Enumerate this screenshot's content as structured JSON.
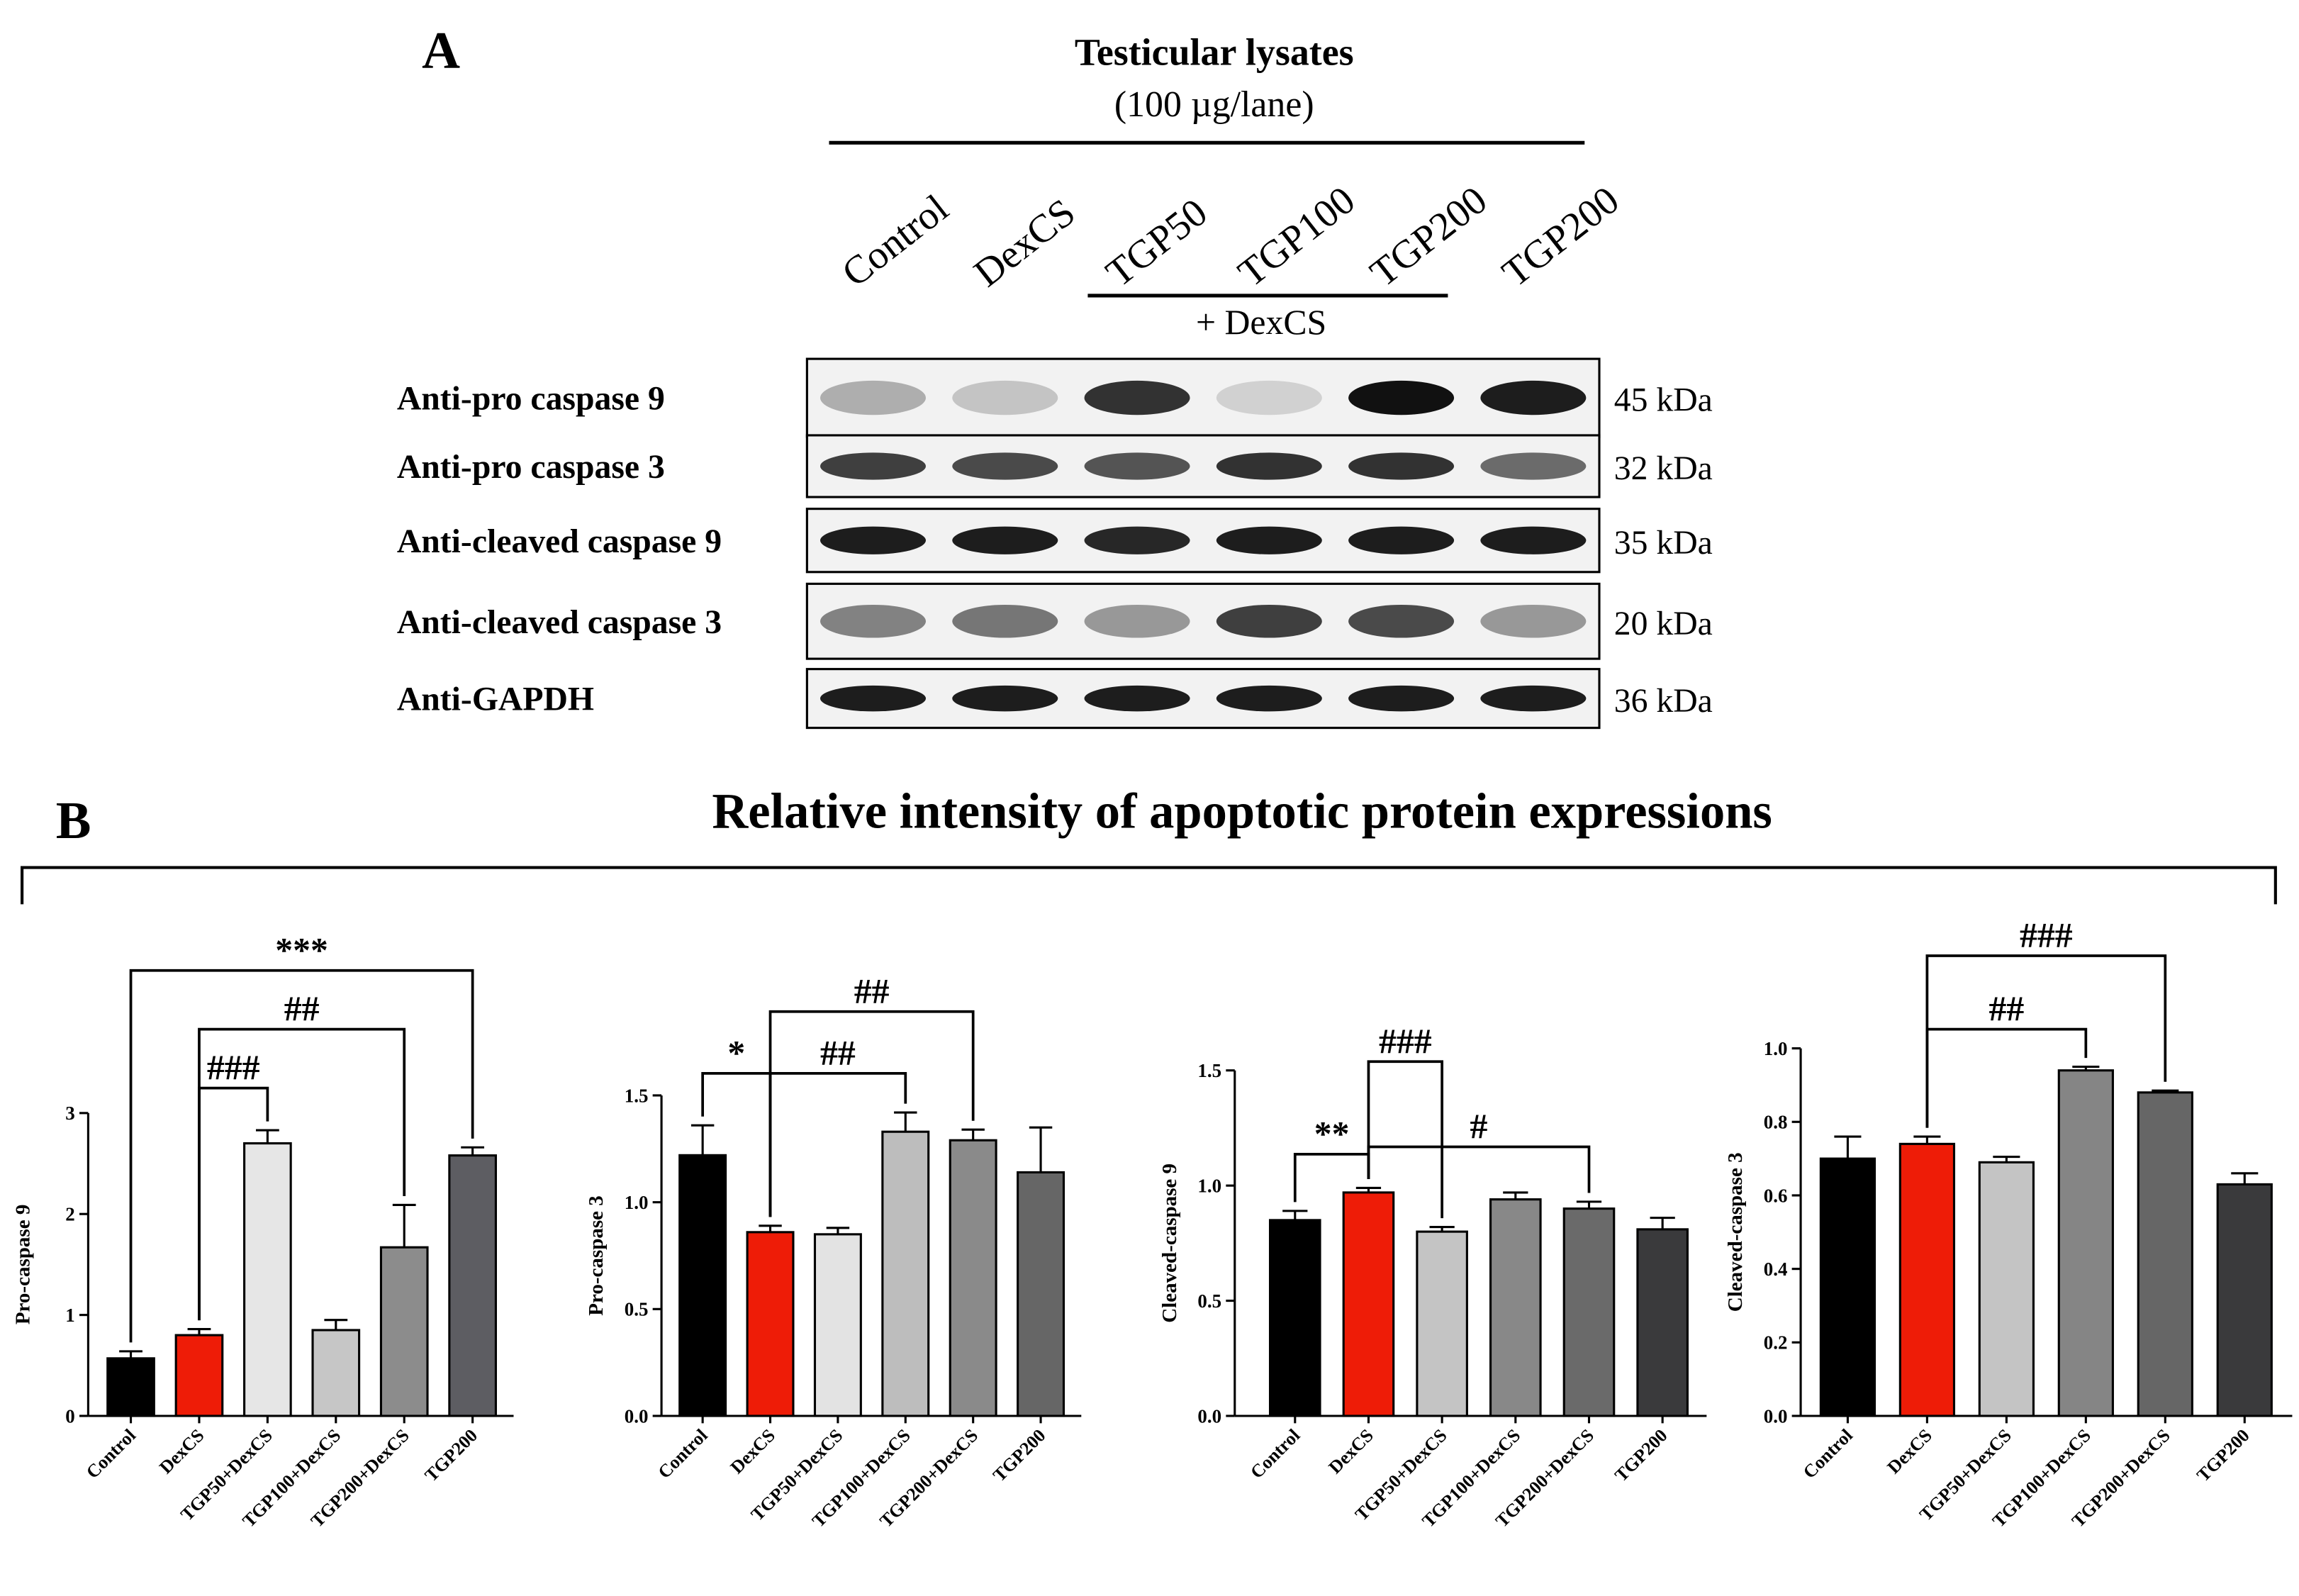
{
  "panel_a": {
    "label": "A",
    "title": "Testicular lysates",
    "subtitle": "(100 µg/lane)",
    "lanes": [
      "Control",
      "DexCS",
      "TGP50",
      "TGP100",
      "TGP200",
      "TGP200"
    ],
    "group_label": "+ DexCS",
    "blots": [
      {
        "antibody": "Anti-pro caspase 9",
        "size": "45 kDa"
      },
      {
        "antibody": "Anti-pro caspase 3",
        "size": "32 kDa"
      },
      {
        "antibody": "Anti-cleaved caspase 9",
        "size": "35 kDa"
      },
      {
        "antibody": "Anti-cleaved caspase 3",
        "size": "20 kDa"
      },
      {
        "antibody": "Anti-GAPDH",
        "size": "36 kDa"
      }
    ]
  },
  "panel_b": {
    "label": "B",
    "title": "Relative intensity of apoptotic protein expressions"
  },
  "chart_data": [
    {
      "type": "bar",
      "ylabel": "Pro-caspase 9",
      "categories": [
        "Control",
        "DexCS",
        "TGP50+DexCS",
        "TGP100+DexCS",
        "TGP200+DexCS",
        "TGP200"
      ],
      "values": [
        0.57,
        0.8,
        2.7,
        0.85,
        1.67,
        2.58
      ],
      "errors": [
        0.07,
        0.06,
        0.13,
        0.1,
        0.42,
        0.08
      ],
      "colors": [
        "#000000",
        "#ee1c07",
        "#e6e6e6",
        "#c6c6c6",
        "#8c8c8c",
        "#5d5d62"
      ],
      "ylim": [
        0,
        3
      ],
      "yticks": [
        0,
        1,
        2,
        3
      ],
      "annotations": [
        {
          "text": "***",
          "from": "Control",
          "to": "TGP200"
        },
        {
          "text": "##",
          "from": "DexCS",
          "to": "TGP200+DexCS"
        },
        {
          "text": "###",
          "from": "DexCS",
          "to": "TGP50+DexCS"
        }
      ]
    },
    {
      "type": "bar",
      "ylabel": "Pro-caspase 3",
      "categories": [
        "Control",
        "DexCS",
        "TGP50+DexCS",
        "TGP100+DexCS",
        "TGP200+DexCS",
        "TGP200"
      ],
      "values": [
        1.22,
        0.86,
        0.85,
        1.33,
        1.29,
        1.14
      ],
      "errors": [
        0.14,
        0.03,
        0.03,
        0.09,
        0.05,
        0.21
      ],
      "colors": [
        "#000000",
        "#ee1c07",
        "#e3e3e3",
        "#bdbdbd",
        "#8a8a8a",
        "#666666"
      ],
      "ylim": [
        0,
        1.5
      ],
      "yticks": [
        {
          "value": 0,
          "label": "0.0"
        },
        0.5,
        {
          "value": 1,
          "label": "1.0"
        },
        1.5
      ],
      "annotations": [
        {
          "text": "*",
          "from": "Control",
          "to": "DexCS"
        },
        {
          "text": "##",
          "from": "DexCS",
          "to": "TGP100+DexCS"
        },
        {
          "text": "##",
          "from": "DexCS",
          "to": "TGP200+DexCS"
        }
      ]
    },
    {
      "type": "bar",
      "ylabel": "Cleaved-caspase 9",
      "categories": [
        "Control",
        "DexCS",
        "TGP50+DexCS",
        "TGP100+DexCS",
        "TGP200+DexCS",
        "TGP200"
      ],
      "values": [
        0.85,
        0.97,
        0.8,
        0.94,
        0.9,
        0.81
      ],
      "errors": [
        0.04,
        0.02,
        0.02,
        0.03,
        0.03,
        0.05
      ],
      "colors": [
        "#000000",
        "#ee1c07",
        "#c4c4c4",
        "#888888",
        "#6a6a6a",
        "#3a3a3c"
      ],
      "ylim": [
        0,
        1.5
      ],
      "yticks": [
        {
          "value": 0,
          "label": "0.0"
        },
        0.5,
        {
          "value": 1,
          "label": "1.0"
        },
        1.5
      ],
      "annotations": [
        {
          "text": "**",
          "from": "Control",
          "to": "DexCS"
        },
        {
          "text": "#",
          "from": "DexCS",
          "to": "TGP200+DexCS"
        },
        {
          "text": "###",
          "from": "DexCS",
          "to": "TGP50+DexCS"
        }
      ]
    },
    {
      "type": "bar",
      "ylabel": "Cleaved-caspase 3",
      "categories": [
        "Control",
        "DexCS",
        "TGP50+DexCS",
        "TGP100+DexCS",
        "TGP200+DexCS",
        "TGP200"
      ],
      "values": [
        0.7,
        0.74,
        0.69,
        0.94,
        0.88,
        0.63
      ],
      "errors": [
        0.06,
        0.02,
        0.015,
        0.01,
        0.005,
        0.03
      ],
      "colors": [
        "#000000",
        "#ee1c07",
        "#c4c4c4",
        "#858585",
        "#666666",
        "#3a3a3c"
      ],
      "ylim": [
        0,
        1
      ],
      "yticks": [
        {
          "value": 0,
          "label": "0.0"
        },
        0.2,
        0.4,
        0.6,
        0.8,
        {
          "value": 1,
          "label": "1.0"
        }
      ],
      "annotations": [
        {
          "text": "##",
          "from": "DexCS",
          "to": "TGP100+DexCS"
        },
        {
          "text": "###",
          "from": "DexCS",
          "to": "TGP200+DexCS"
        }
      ]
    }
  ]
}
